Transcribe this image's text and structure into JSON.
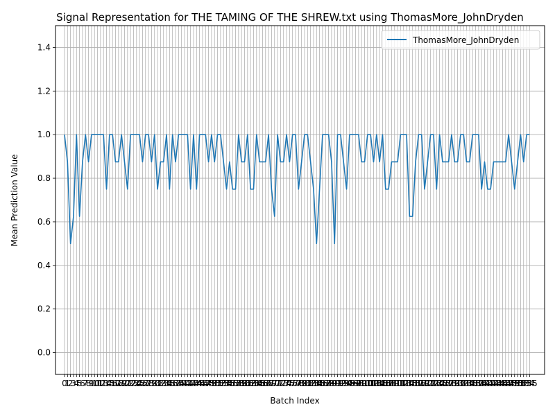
{
  "chart_data": {
    "type": "line",
    "title": "Signal Representation for THE TAMING OF THE SHREW.txt using ThomasMore_JohnDryden",
    "xlabel": "Batch Index",
    "ylabel": "Mean Prediction Value",
    "ylim": [
      -0.1,
      1.5
    ],
    "xlim": [
      -3,
      160
    ],
    "yticks": [
      "0.0",
      "0.2",
      "0.4",
      "0.6",
      "0.8",
      "1.0",
      "1.2",
      "1.4"
    ],
    "grid": true,
    "legend": "top-right",
    "x_tick_step": 1,
    "series": [
      {
        "name": "ThomasMore_JohnDryden",
        "color": "#1f77b4",
        "x_start": 0,
        "values": [
          1.0,
          0.875,
          0.5,
          0.625,
          1.0,
          0.625,
          0.875,
          1.0,
          0.875,
          1.0,
          1.0,
          1.0,
          1.0,
          1.0,
          0.75,
          1.0,
          1.0,
          0.875,
          0.875,
          1.0,
          0.875,
          0.75,
          1.0,
          1.0,
          1.0,
          1.0,
          0.875,
          1.0,
          1.0,
          0.875,
          1.0,
          0.75,
          0.875,
          0.875,
          1.0,
          0.75,
          1.0,
          0.875,
          1.0,
          1.0,
          1.0,
          1.0,
          0.75,
          1.0,
          0.75,
          1.0,
          1.0,
          1.0,
          0.875,
          1.0,
          0.875,
          1.0,
          1.0,
          0.875,
          0.75,
          0.875,
          0.75,
          0.75,
          1.0,
          0.875,
          0.875,
          1.0,
          0.75,
          0.75,
          1.0,
          0.875,
          0.875,
          0.875,
          1.0,
          0.75,
          0.625,
          1.0,
          0.875,
          0.875,
          1.0,
          0.875,
          1.0,
          1.0,
          0.75,
          0.875,
          1.0,
          1.0,
          0.875,
          0.75,
          0.5,
          0.75,
          1.0,
          1.0,
          1.0,
          0.875,
          0.5,
          1.0,
          1.0,
          0.875,
          0.75,
          1.0,
          1.0,
          1.0,
          1.0,
          0.875,
          0.875,
          1.0,
          1.0,
          0.875,
          1.0,
          0.875,
          1.0,
          0.75,
          0.75,
          0.875,
          0.875,
          0.875,
          1.0,
          1.0,
          1.0,
          0.625,
          0.625,
          0.875,
          1.0,
          1.0,
          0.75,
          0.875,
          1.0,
          1.0,
          0.75,
          1.0,
          0.875,
          0.875,
          0.875,
          1.0,
          0.875,
          0.875,
          1.0,
          1.0,
          0.875,
          0.875,
          1.0,
          1.0,
          1.0,
          0.75,
          0.875,
          0.75,
          0.75,
          0.875,
          0.875,
          0.875,
          0.875,
          0.875,
          1.0,
          0.875,
          0.75,
          0.875,
          1.0,
          0.875,
          1.0,
          1.0
        ]
      }
    ]
  }
}
